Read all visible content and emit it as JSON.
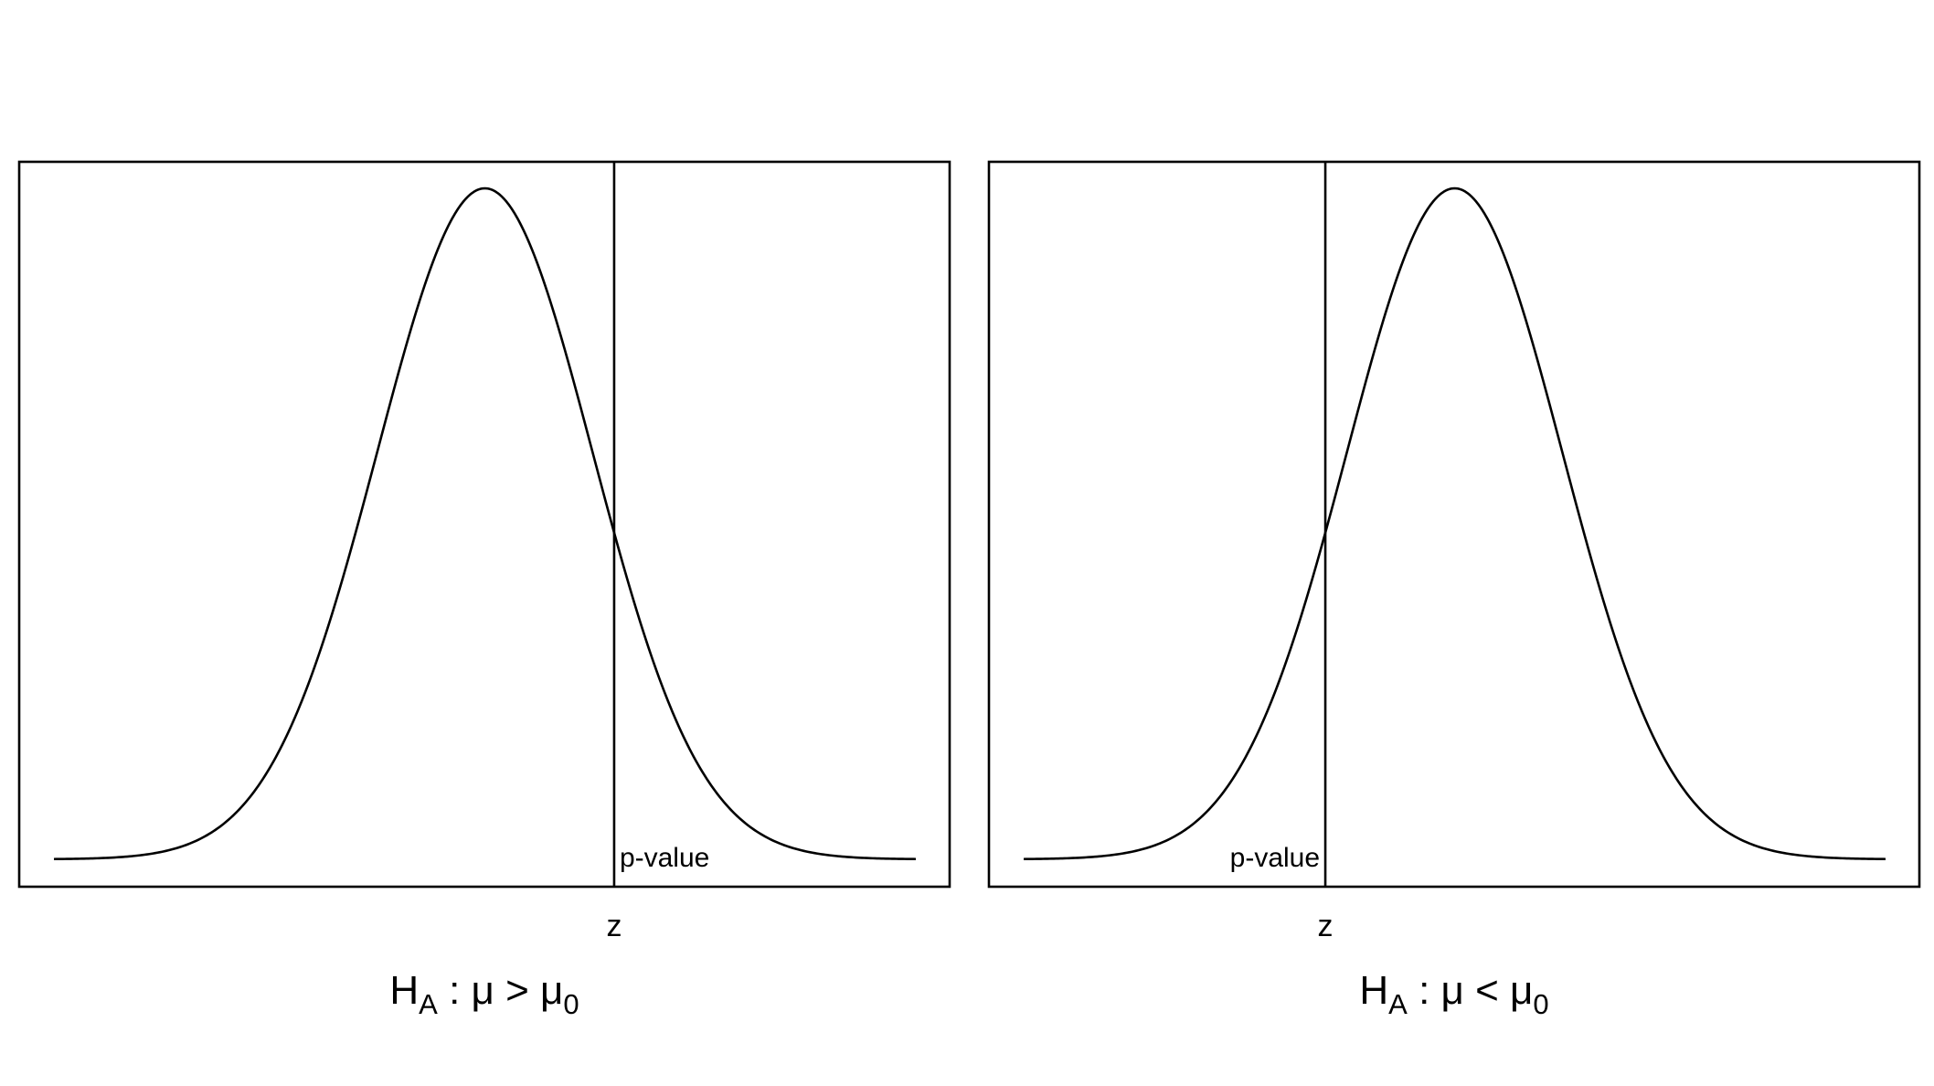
{
  "chart_data": [
    {
      "type": "line",
      "series": [
        {
          "description": "standard normal density",
          "mean": 0,
          "sd": 1
        }
      ],
      "xlim": [
        -4,
        4
      ],
      "z_value": 1.2,
      "annotation": "p-value",
      "xlabel": "z",
      "caption": {
        "main": "H",
        "main_sub": "A",
        "relation_before": " : μ ",
        "relation_symbol": ">",
        "relation_after": " μ",
        "relation_sub": "0"
      },
      "grid": false,
      "axes_ticks": false
    },
    {
      "type": "line",
      "series": [
        {
          "description": "standard normal density",
          "mean": 0,
          "sd": 1
        }
      ],
      "xlim": [
        -4,
        4
      ],
      "z_value": -1.2,
      "annotation": "p-value",
      "xlabel": "z",
      "caption": {
        "main": "H",
        "main_sub": "A",
        "relation_before": " : μ ",
        "relation_symbol": "<",
        "relation_after": " μ",
        "relation_sub": "0"
      },
      "grid": false,
      "axes_ticks": false
    }
  ]
}
